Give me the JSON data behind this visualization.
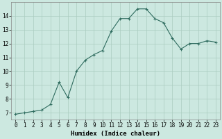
{
  "x": [
    0,
    1,
    2,
    3,
    4,
    5,
    6,
    7,
    8,
    9,
    10,
    11,
    12,
    13,
    14,
    15,
    16,
    17,
    18,
    19,
    20,
    21,
    22,
    23
  ],
  "y": [
    6.9,
    7.0,
    7.1,
    7.2,
    7.6,
    9.2,
    8.1,
    10.0,
    10.8,
    11.2,
    11.5,
    12.9,
    13.8,
    13.8,
    14.5,
    14.5,
    13.8,
    13.5,
    12.4,
    11.6,
    12.0,
    12.0,
    12.2,
    12.1
  ],
  "xlabel": "Humidex (Indice chaleur)",
  "ylim": [
    6.5,
    15
  ],
  "xlim": [
    -0.5,
    23.5
  ],
  "yticks": [
    7,
    8,
    9,
    10,
    11,
    12,
    13,
    14
  ],
  "xticks": [
    0,
    1,
    2,
    3,
    4,
    5,
    6,
    7,
    8,
    9,
    10,
    11,
    12,
    13,
    14,
    15,
    16,
    17,
    18,
    19,
    20,
    21,
    22,
    23
  ],
  "line_color": "#2e6b5e",
  "marker_color": "#2e6b5e",
  "bg_color": "#cce8e0",
  "grid_color": "#aaccbf",
  "tick_fontsize": 5.5,
  "xlabel_fontsize": 6.5,
  "marker_size": 3
}
